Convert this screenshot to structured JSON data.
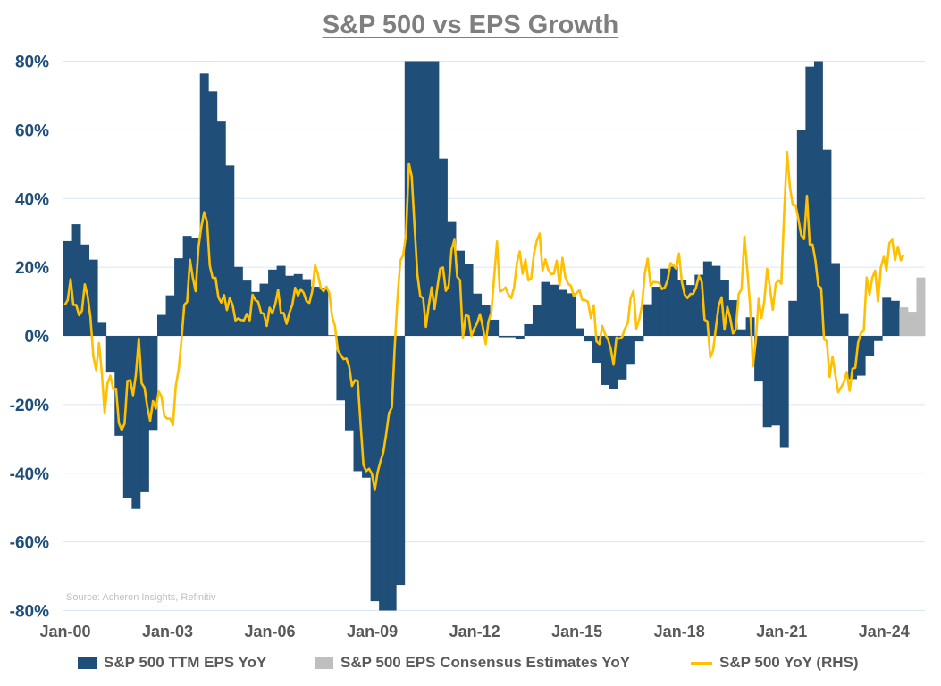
{
  "colors": {
    "eps_ttm": "#1f4e79",
    "eps_estimates": "#bfbfbf",
    "sp500_yoy": "#ffc000",
    "grid": "#dce6f2",
    "title": "#7f7f7f",
    "axis_text": "#595959",
    "y_tick_text": "#1f4e79"
  },
  "source": "Source: Acheron Insights, Refinitiv",
  "chart_data": {
    "type": "bar+line",
    "title": "S&P 500 vs EPS Growth",
    "xlabel": "",
    "ylabel": "",
    "ylim": [
      -80,
      80
    ],
    "grid": true,
    "legend_position": "bottom",
    "y_ticks": [
      "80%",
      "60%",
      "40%",
      "20%",
      "0%",
      "-20%",
      "-40%",
      "-60%",
      "-80%"
    ],
    "y_tick_values": [
      80,
      60,
      40,
      20,
      0,
      -20,
      -40,
      -60,
      -80
    ],
    "x_ticks": [
      "Jan-00",
      "Jan-03",
      "Jan-06",
      "Jan-09",
      "Jan-12",
      "Jan-15",
      "Jan-18",
      "Jan-21",
      "Jan-24"
    ],
    "series": [
      {
        "name": "S&P 500 TTM EPS YoY",
        "type": "bar",
        "frequency": "quarterly",
        "values_by_year": {
          "2000": [
            27.6,
            32.5,
            26.6,
            22.2
          ],
          "2001": [
            3.8,
            -10.7,
            -29.1,
            -47.1
          ],
          "2002": [
            -50.4,
            -45.5,
            -27.4,
            6.1
          ],
          "2003": [
            11.8,
            22.6,
            29.1,
            28.5
          ],
          "2004": [
            76.4,
            71.2,
            62.4,
            49.6
          ],
          "2005": [
            20.1,
            16.1,
            12.8,
            15.2
          ],
          "2006": [
            19.3,
            20.4,
            17.5,
            18.0
          ],
          "2007": [
            16.5,
            14.3,
            14.0,
            0.2
          ],
          "2008": [
            -18.8,
            -27.5,
            -39.4,
            -41.3
          ],
          "2009": [
            -77.3,
            -80,
            -80,
            -72.6
          ],
          "2010": [
            80,
            80,
            80,
            80
          ],
          "2011": [
            51.6,
            33.4,
            24.8,
            20.9
          ],
          "2012": [
            12.3,
            8.9,
            4.7,
            -0.4
          ],
          "2013": [
            -0.4,
            -0.8,
            3.4,
            8.9
          ],
          "2014": [
            15.7,
            14.9,
            13.4,
            12.4
          ],
          "2015": [
            2.2,
            -1.6,
            -7.8,
            -14.3
          ],
          "2016": [
            -15.4,
            -12.7,
            -8.4,
            -1.6
          ],
          "2017": [
            9.2,
            14.3,
            19.6,
            20.2
          ],
          "2018": [
            16.2,
            14.8,
            17.8,
            21.7
          ],
          "2019": [
            20.4,
            16.2,
            10.4,
            1.9
          ],
          "2020": [
            5.4,
            -13.3,
            -26.6,
            -26.1
          ],
          "2021": [
            -32.4,
            10.2,
            59.9,
            78.4
          ],
          "2022": [
            80,
            54.2,
            21.2,
            6.6
          ],
          "2023": [
            -12.6,
            -11.6,
            -5.8,
            -1.5
          ],
          "2024": [
            11.1,
            10.2
          ]
        }
      },
      {
        "name": "S&P 500 EPS Consensus Estimates YoY",
        "type": "bar",
        "x": [
          "2024Q3",
          "2024Q4",
          "2025Q1"
        ],
        "values": [
          8.3,
          7.0,
          17.0
        ]
      },
      {
        "name": "S&P 500 YoY (RHS)",
        "type": "line",
        "frequency": "monthly",
        "values_by_year": {
          "2000": [
            9.0,
            10.4,
            16.5,
            9,
            9,
            6,
            7.3,
            15,
            11.7,
            5.5,
            -5.9,
            -10
          ],
          "2001": [
            -2.1,
            -11,
            -22.5,
            -13.8,
            -11.6,
            -15.5,
            -15.4,
            -25.4,
            -27.4,
            -25.6,
            -13.1,
            -12.9
          ],
          "2002": [
            -17.3,
            -11.1,
            -0.8,
            -13.8,
            -15.1,
            -20.8,
            -24.7,
            -19,
            -21.2,
            -16.2,
            -17.7,
            -23.4
          ],
          "2003": [
            -24.1,
            -24.1,
            -26,
            -14.6,
            -9.8,
            -1.5,
            9,
            9.9,
            22.2,
            16.9,
            13,
            25.7
          ],
          "2004": [
            31.8,
            36,
            33.2,
            20.4,
            16.9,
            16.9,
            11.2,
            9.7,
            11.9,
            7.5,
            11,
            9
          ],
          "2005": [
            4.5,
            5.1,
            4.6,
            4.5,
            6.4,
            4.5,
            12,
            10.4,
            9.9,
            6.8,
            6.4,
            2.9
          ],
          "2006": [
            8.2,
            6.6,
            9.2,
            13.4,
            6.7,
            6.6,
            3.5,
            6.8,
            9,
            14,
            11.7,
            13.6
          ],
          "2007": [
            12.5,
            10.1,
            9.6,
            13,
            20.6,
            18,
            13.9,
            13,
            14.3,
            12.5,
            5.5,
            2.9
          ],
          "2008": [
            -4.2,
            -5.5,
            -6.8,
            -6.6,
            -8.9,
            -14.6,
            -12.9,
            -13.1,
            -25.6,
            -37.6,
            -39.4,
            -38.7
          ],
          "2009": [
            -40.2,
            -44.9,
            -39.7,
            -36.6,
            -34,
            -28.7,
            -22.5,
            -20.9,
            -3.7,
            11,
            21.9,
            23.5
          ],
          "2010": [
            29.8,
            50.2,
            46.5,
            31.9,
            17.8,
            11.5,
            11,
            2.6,
            8.9,
            14.1,
            7.8,
            14.1
          ],
          "2011": [
            19.6,
            19.9,
            13.1,
            14.6,
            25.1,
            28,
            17.2,
            16.2,
            -0.5,
            6,
            5.7,
            0
          ],
          "2012": [
            2.1,
            3.7,
            6.3,
            2.6,
            -2.4,
            4.2,
            6.8,
            17.2,
            27.5,
            12.9,
            13.3,
            14.1
          ],
          "2013": [
            12,
            11,
            14.1,
            21.4,
            24.6,
            18.1,
            22.3,
            16.2,
            16.7,
            24,
            27.7,
            29.8
          ],
          "2014": [
            19,
            22.3,
            19.3,
            18,
            18.1,
            21.9,
            14.6,
            22.7,
            17.2,
            15.2,
            14.6,
            11.5
          ],
          "2015": [
            12.5,
            13.3,
            10.4,
            10.4,
            9.9,
            5.2,
            8.9,
            -1.6,
            -2.4,
            2.9,
            0.5,
            -1
          ],
          "2016": [
            -3.7,
            -8.4,
            -0.5,
            -0.8,
            -0.3,
            2.1,
            3.7,
            11,
            13.1,
            2.1,
            4.7,
            8.9
          ],
          "2017": [
            18.3,
            22.5,
            14.6,
            15.7,
            15.6,
            15.4,
            13.6,
            14.1,
            16.2,
            21.2,
            20.6,
            19.5
          ],
          "2018": [
            24,
            15.7,
            12,
            11,
            12.2,
            12.2,
            14.1,
            17.5,
            15.7,
            4.7,
            4.2,
            -6.3
          ],
          "2019": [
            -4.2,
            2.6,
            8.9,
            11.2,
            1.8,
            8.4,
            5.2,
            0.7,
            1.8,
            12.2,
            13.6,
            28.9
          ],
          "2020": [
            19.3,
            8.9,
            -8.9,
            -1.6,
            10.8,
            5.2,
            9.9,
            19.5,
            14.1,
            7.6,
            15.2,
            16.2
          ],
          "2021": [
            15.2,
            36,
            53.6,
            43.4,
            38.1,
            38.1,
            34,
            29.3,
            28.2,
            40.8,
            26.6,
            26.6
          ],
          "2022": [
            21.9,
            14.6,
            13.9,
            -1,
            -1.6,
            -12,
            -6,
            -11.5,
            -16.4,
            -15,
            -13.5,
            -10.5
          ],
          "2023": [
            -16,
            -9.6,
            -9.3,
            -2,
            0.8,
            1.5,
            17,
            12,
            17,
            19,
            10,
            20
          ],
          "2024": [
            23,
            19,
            27,
            28,
            22,
            26,
            22,
            23.5
          ]
        }
      }
    ]
  }
}
